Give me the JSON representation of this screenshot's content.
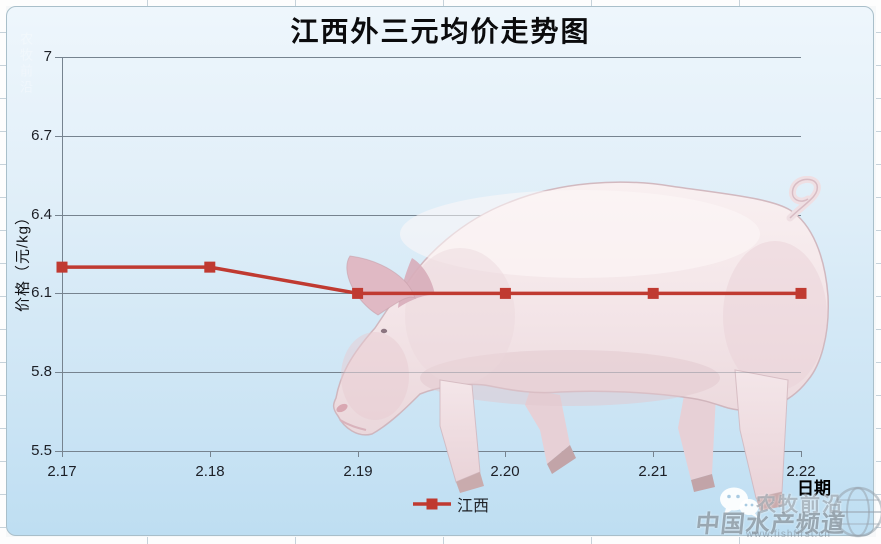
{
  "title": "江西外三元均价走势图",
  "chart_data": {
    "type": "line",
    "title": "江西外三元均价走势图",
    "categories": [
      "2.17",
      "2.18",
      "2.19",
      "2.20",
      "2.21",
      "2.22"
    ],
    "series": [
      {
        "name": "江西",
        "color": "#c03a31",
        "values": [
          6.2,
          6.2,
          6.1,
          6.1,
          6.1,
          6.1
        ]
      }
    ],
    "xlabel": "日期",
    "ylabel": "价格（元/kg）",
    "ylim": [
      5.5,
      7
    ],
    "yticks": [
      7,
      6.7,
      6.4,
      6.1,
      5.8,
      5.5
    ],
    "grid": true,
    "legend_position": "bottom-center",
    "marker": "square"
  },
  "watermarks": {
    "top_left_text": "农牧前沿",
    "wechat_icon": "wechat-icon",
    "brand_name": "农牧前沿",
    "channel_name": "中国水产频道",
    "site_url": "www.fishfirst.cn",
    "globe_icon": "globe-icon"
  },
  "colors": {
    "series_red": "#c03a31",
    "gridline": "#76838f",
    "axis_text": "#1c1f26",
    "bg_top": "#ecf5fb",
    "bg_bottom": "#bedef2",
    "frame_border": "#a9bfca"
  }
}
